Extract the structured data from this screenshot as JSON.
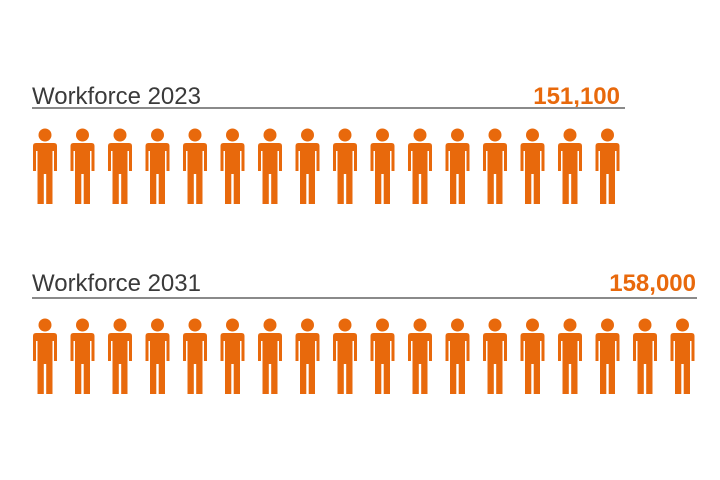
{
  "chart_data": {
    "type": "bar",
    "title": "",
    "accent_color": "#e8690c",
    "icon": "person-icon",
    "rows": [
      {
        "label": "Workforce 2023",
        "value": 151100,
        "value_label": "151,100",
        "icon_count": 16
      },
      {
        "label": "Workforce 2031",
        "value": 158000,
        "value_label": "158,000",
        "icon_count": 18
      }
    ]
  }
}
